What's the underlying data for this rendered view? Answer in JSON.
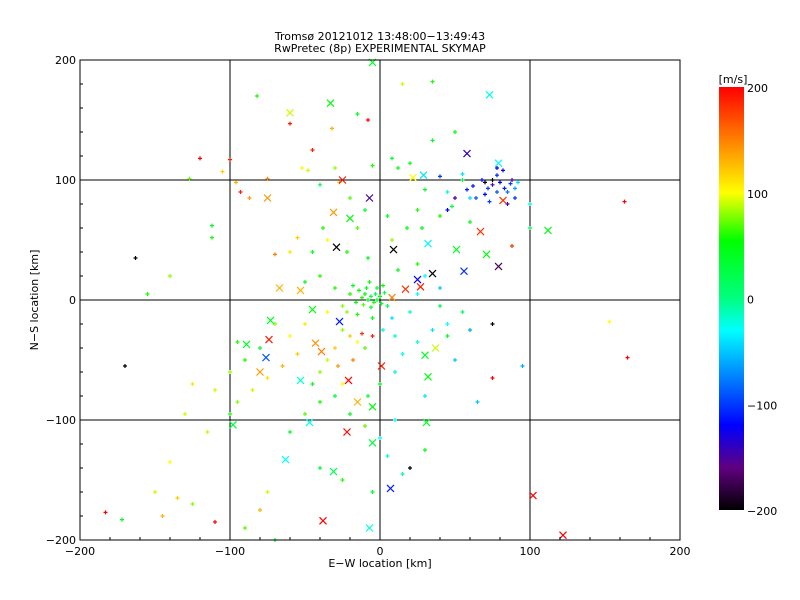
{
  "chart_data": {
    "type": "scatter",
    "title": "Tromsø 20121012 13:48:00−13:49:43",
    "subtitle": "RwPretec (8p) EXPERIMENTAL SKYMAP",
    "xlabel": "E−W location [km]",
    "ylabel": "N−S location [km]",
    "xlim": [
      -200,
      200
    ],
    "ylim": [
      -200,
      200
    ],
    "xticks": [
      -200,
      -100,
      0,
      100,
      200
    ],
    "yticks": [
      -200,
      -100,
      0,
      100,
      200
    ],
    "xtick_labels": [
      "−200",
      "−100",
      "0",
      "100",
      "200"
    ],
    "ytick_labels": [
      "−200",
      "−100",
      "0",
      "100",
      "200"
    ],
    "grid": true,
    "colorbar": {
      "label": "[m/s]",
      "range": [
        -200,
        200
      ],
      "ticks": [
        200,
        100,
        0,
        -100,
        -200
      ],
      "tick_labels": [
        "200",
        "100",
        "0",
        "−100",
        "−200"
      ],
      "stops": [
        [
          200,
          "#ff0000"
        ],
        [
          150,
          "#ff8000"
        ],
        [
          100,
          "#ffff00"
        ],
        [
          55,
          "#00ff00"
        ],
        [
          0,
          "#00ff80"
        ],
        [
          -30,
          "#00ffff"
        ],
        [
          -120,
          "#0000ff"
        ],
        [
          -160,
          "#600080"
        ],
        [
          -200,
          "#000000"
        ]
      ]
    },
    "legend": "none",
    "point_fields": [
      "x_km",
      "y_km",
      "velocity_m_s"
    ],
    "crosses": [
      [
        -5,
        198,
        40
      ],
      [
        73,
        171,
        -25
      ],
      [
        -33,
        164,
        50
      ],
      [
        -60,
        156,
        90
      ],
      [
        58,
        122,
        -140
      ],
      [
        79,
        114,
        -30
      ],
      [
        29,
        104,
        -40
      ],
      [
        -25,
        100,
        190
      ],
      [
        -7,
        85,
        -150
      ],
      [
        22,
        102,
        100
      ],
      [
        -75,
        85,
        140
      ],
      [
        82,
        83,
        180
      ],
      [
        -31,
        73,
        140
      ],
      [
        -20,
        68,
        50
      ],
      [
        112,
        58,
        45
      ],
      [
        67,
        57,
        180
      ],
      [
        -29,
        44,
        -200
      ],
      [
        9,
        42,
        -200
      ],
      [
        32,
        47,
        -30
      ],
      [
        51,
        42,
        40
      ],
      [
        71,
        38,
        50
      ],
      [
        79,
        28,
        -170
      ],
      [
        56,
        24,
        -100
      ],
      [
        35,
        22,
        -200
      ],
      [
        25,
        17,
        -120
      ],
      [
        17,
        9,
        180
      ],
      [
        8,
        2,
        150
      ],
      [
        27,
        11,
        190
      ],
      [
        -27,
        -18,
        -110
      ],
      [
        -45,
        -8,
        50
      ],
      [
        -53,
        8,
        130
      ],
      [
        -67,
        10,
        130
      ],
      [
        -73,
        -17,
        40
      ],
      [
        -74,
        -33,
        190
      ],
      [
        -89,
        -37,
        40
      ],
      [
        -76,
        -48,
        -90
      ],
      [
        -39,
        -43,
        150
      ],
      [
        -43,
        -36,
        140
      ],
      [
        -80,
        -60,
        140
      ],
      [
        -21,
        -67,
        200
      ],
      [
        30,
        -46,
        40
      ],
      [
        32,
        -64,
        50
      ],
      [
        37,
        -40,
        90
      ],
      [
        -15,
        -85,
        130
      ],
      [
        1,
        -55,
        190
      ],
      [
        -53,
        -67,
        -20
      ],
      [
        -98,
        -104,
        30
      ],
      [
        -47,
        -102,
        -25
      ],
      [
        -22,
        -110,
        200
      ],
      [
        31,
        -102,
        40
      ],
      [
        -5,
        -119,
        30
      ],
      [
        -63,
        -133,
        -30
      ],
      [
        -31,
        -143,
        20
      ],
      [
        7,
        -157,
        -110
      ],
      [
        102,
        -163,
        200
      ],
      [
        122,
        -196,
        200
      ],
      [
        -38,
        -184,
        200
      ],
      [
        -7,
        -190,
        -20
      ],
      [
        -5,
        -89,
        50
      ]
    ],
    "pluses": [
      [
        -100,
        117,
        190
      ],
      [
        -120,
        118,
        200
      ],
      [
        -127,
        101,
        70
      ],
      [
        -105,
        107,
        120
      ],
      [
        -96,
        98,
        130
      ],
      [
        -93,
        90,
        190
      ],
      [
        -87,
        85,
        140
      ],
      [
        -75,
        101,
        150
      ],
      [
        -82,
        170,
        60
      ],
      [
        -60,
        147,
        190
      ],
      [
        -45,
        125,
        190
      ],
      [
        -32,
        143,
        130
      ],
      [
        -48,
        108,
        90
      ],
      [
        -52,
        110,
        100
      ],
      [
        -30,
        110,
        80
      ],
      [
        -27,
        98,
        130
      ],
      [
        -15,
        155,
        40
      ],
      [
        -8,
        150,
        200
      ],
      [
        8,
        118,
        30
      ],
      [
        12,
        110,
        40
      ],
      [
        -5,
        112,
        60
      ],
      [
        20,
        114,
        45
      ],
      [
        35,
        133,
        40
      ],
      [
        35,
        182,
        60
      ],
      [
        15,
        180,
        90
      ],
      [
        50,
        140,
        40
      ],
      [
        30,
        92,
        40
      ],
      [
        55,
        100,
        20
      ],
      [
        48,
        78,
        30
      ],
      [
        40,
        70,
        60
      ],
      [
        -40,
        96,
        20
      ],
      [
        -20,
        85,
        70
      ],
      [
        -10,
        75,
        30
      ],
      [
        5,
        70,
        40
      ],
      [
        18,
        60,
        40
      ],
      [
        25,
        75,
        60
      ],
      [
        -15,
        60,
        70
      ],
      [
        -38,
        60,
        60
      ],
      [
        -35,
        50,
        100
      ],
      [
        -55,
        52,
        120
      ],
      [
        -60,
        40,
        110
      ],
      [
        -70,
        38,
        150
      ],
      [
        -45,
        40,
        40
      ],
      [
        -22,
        40,
        60
      ],
      [
        -8,
        35,
        40
      ],
      [
        8,
        50,
        80
      ],
      [
        28,
        60,
        50
      ],
      [
        60,
        65,
        40
      ],
      [
        100,
        60,
        20
      ],
      [
        88,
        45,
        180
      ],
      [
        45,
        90,
        -20
      ],
      [
        60,
        85,
        -40
      ],
      [
        -112,
        52,
        60
      ],
      [
        -112,
        62,
        40
      ],
      [
        -140,
        20,
        80
      ],
      [
        -155,
        5,
        60
      ],
      [
        -163,
        35,
        -200
      ],
      [
        -170,
        -55,
        -200
      ],
      [
        62,
        95,
        -110
      ],
      [
        68,
        100,
        -120
      ],
      [
        72,
        93,
        -100
      ],
      [
        75,
        96,
        -150
      ],
      [
        78,
        90,
        -90
      ],
      [
        80,
        98,
        -120
      ],
      [
        83,
        93,
        -110
      ],
      [
        85,
        90,
        -80
      ],
      [
        87,
        97,
        -100
      ],
      [
        78,
        104,
        -110
      ],
      [
        82,
        108,
        -130
      ],
      [
        88,
        100,
        -150
      ],
      [
        90,
        93,
        -60
      ],
      [
        70,
        88,
        -120
      ],
      [
        64,
        85,
        -90
      ],
      [
        73,
        82,
        -100
      ],
      [
        85,
        80,
        -140
      ],
      [
        92,
        98,
        -40
      ],
      [
        58,
        92,
        -110
      ],
      [
        50,
        85,
        -150
      ],
      [
        45,
        75,
        -120
      ],
      [
        78,
        110,
        -120
      ],
      [
        90,
        85,
        -100
      ],
      [
        75,
        100,
        -200
      ],
      [
        70,
        98,
        -200
      ],
      [
        40,
        103,
        -100
      ],
      [
        55,
        105,
        -40
      ],
      [
        100,
        80,
        -20
      ],
      [
        -10,
        5,
        50
      ],
      [
        -8,
        0,
        40
      ],
      [
        -6,
        3,
        30
      ],
      [
        -4,
        -2,
        60
      ],
      [
        -3,
        5,
        20
      ],
      [
        -2,
        0,
        40
      ],
      [
        0,
        3,
        50
      ],
      [
        1,
        -3,
        30
      ],
      [
        -12,
        2,
        60
      ],
      [
        -14,
        8,
        50
      ],
      [
        -9,
        10,
        40
      ],
      [
        -6,
        -6,
        40
      ],
      [
        -11,
        -4,
        70
      ],
      [
        3,
        6,
        30
      ],
      [
        5,
        -5,
        20
      ],
      [
        -16,
        -2,
        50
      ],
      [
        -20,
        5,
        60
      ],
      [
        -18,
        12,
        40
      ],
      [
        -2,
        10,
        30
      ],
      [
        2,
        12,
        50
      ],
      [
        -7,
        15,
        45
      ],
      [
        -22,
        -10,
        80
      ],
      [
        -15,
        -12,
        60
      ],
      [
        -5,
        -15,
        40
      ],
      [
        -25,
        -25,
        80
      ],
      [
        -20,
        -30,
        120
      ],
      [
        -15,
        -35,
        100
      ],
      [
        -10,
        -40,
        70
      ],
      [
        -30,
        -40,
        120
      ],
      [
        -35,
        -50,
        90
      ],
      [
        -28,
        -55,
        140
      ],
      [
        -40,
        -60,
        80
      ],
      [
        -45,
        -70,
        40
      ],
      [
        -25,
        -70,
        100
      ],
      [
        -18,
        -50,
        150
      ],
      [
        -12,
        -28,
        180
      ],
      [
        -5,
        -30,
        190
      ],
      [
        2,
        -25,
        -20
      ],
      [
        8,
        -15,
        -40
      ],
      [
        10,
        -30,
        -20
      ],
      [
        15,
        -45,
        -30
      ],
      [
        25,
        -35,
        -20
      ],
      [
        35,
        -25,
        -40
      ],
      [
        45,
        -20,
        -30
      ],
      [
        20,
        -10,
        -20
      ],
      [
        25,
        5,
        -30
      ],
      [
        40,
        -5,
        20
      ],
      [
        55,
        -10,
        10
      ],
      [
        -50,
        -20,
        110
      ],
      [
        -60,
        -30,
        100
      ],
      [
        -70,
        -20,
        80
      ],
      [
        -80,
        -40,
        40
      ],
      [
        -90,
        -50,
        60
      ],
      [
        -55,
        -45,
        120
      ],
      [
        -65,
        -55,
        130
      ],
      [
        -75,
        -65,
        110
      ],
      [
        -85,
        -75,
        90
      ],
      [
        -95,
        -85,
        80
      ],
      [
        -100,
        -95,
        60
      ],
      [
        -110,
        -75,
        90
      ],
      [
        -115,
        -110,
        90
      ],
      [
        -125,
        -70,
        110
      ],
      [
        -130,
        -95,
        90
      ],
      [
        -140,
        -135,
        100
      ],
      [
        -150,
        -160,
        90
      ],
      [
        -135,
        -165,
        120
      ],
      [
        -110,
        -185,
        200
      ],
      [
        -125,
        -170,
        80
      ],
      [
        -145,
        -180,
        130
      ],
      [
        -183,
        -177,
        200
      ],
      [
        -172,
        -183,
        40
      ],
      [
        -60,
        -110,
        30
      ],
      [
        -50,
        -95,
        70
      ],
      [
        -40,
        -85,
        60
      ],
      [
        -30,
        -80,
        30
      ],
      [
        -20,
        -95,
        40
      ],
      [
        -10,
        -105,
        70
      ],
      [
        0,
        -115,
        -30
      ],
      [
        5,
        -130,
        -20
      ],
      [
        15,
        -145,
        -10
      ],
      [
        20,
        -140,
        -200
      ],
      [
        30,
        -125,
        50
      ],
      [
        -5,
        -160,
        40
      ],
      [
        -25,
        -150,
        60
      ],
      [
        -40,
        -140,
        30
      ],
      [
        -75,
        -160,
        90
      ],
      [
        -80,
        -175,
        130
      ],
      [
        -70,
        -200,
        40
      ],
      [
        -90,
        -190,
        70
      ],
      [
        10,
        -100,
        -30
      ],
      [
        30,
        -80,
        -40
      ],
      [
        50,
        -50,
        -50
      ],
      [
        60,
        -25,
        -60
      ],
      [
        75,
        -20,
        -200
      ],
      [
        65,
        -85,
        -50
      ],
      [
        75,
        -65,
        200
      ],
      [
        95,
        -55,
        -60
      ],
      [
        153,
        -18,
        100
      ],
      [
        165,
        -48,
        200
      ],
      [
        163,
        82,
        200
      ],
      [
        -100,
        -60,
        80
      ],
      [
        -95,
        -35,
        60
      ],
      [
        -25,
        -5,
        80
      ],
      [
        -30,
        10,
        60
      ],
      [
        -40,
        20,
        60
      ],
      [
        -50,
        15,
        40
      ],
      [
        -35,
        -10,
        100
      ],
      [
        12,
        25,
        40
      ],
      [
        25,
        30,
        60
      ],
      [
        30,
        20,
        -30
      ],
      [
        40,
        10,
        -50
      ],
      [
        45,
        -30,
        40
      ],
      [
        10,
        -60,
        -20
      ],
      [
        0,
        -70,
        50
      ],
      [
        -8,
        -80,
        30
      ]
    ]
  }
}
